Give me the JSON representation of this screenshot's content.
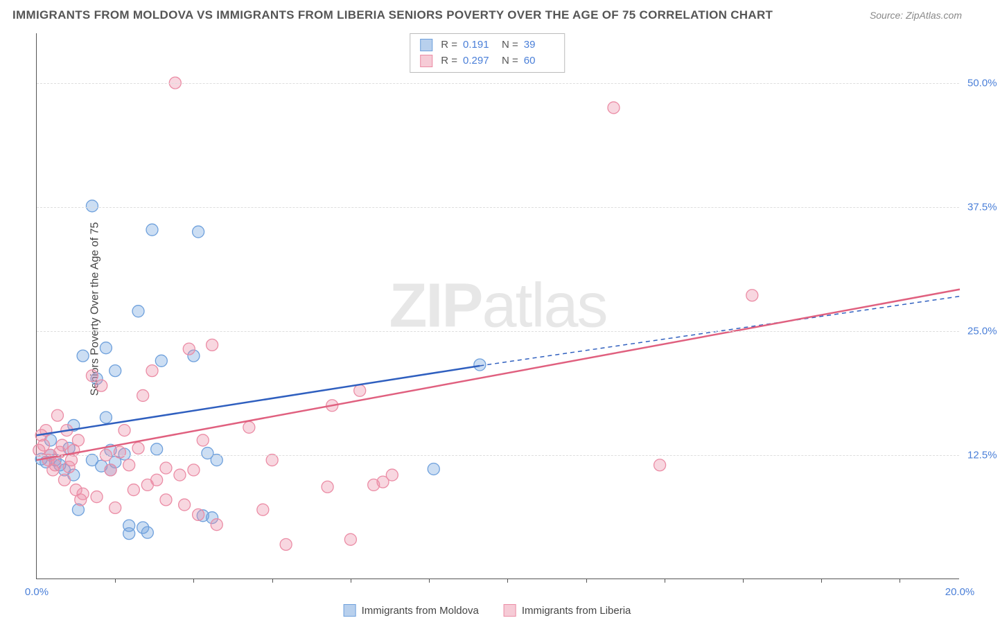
{
  "title": "IMMIGRANTS FROM MOLDOVA VS IMMIGRANTS FROM LIBERIA SENIORS POVERTY OVER THE AGE OF 75 CORRELATION CHART",
  "source_label": "Source: ZipAtlas.com",
  "y_axis_title": "Seniors Poverty Over the Age of 75",
  "watermark_bold": "ZIP",
  "watermark_light": "atlas",
  "chart": {
    "type": "scatter",
    "xlim": [
      0,
      20
    ],
    "ylim": [
      0,
      55
    ],
    "x_ticks_label": [
      {
        "val": 0,
        "label": "0.0%"
      },
      {
        "val": 20,
        "label": "20.0%"
      }
    ],
    "x_tick_marks": [
      1.7,
      3.4,
      5.1,
      6.8,
      8.5,
      10.2,
      11.9,
      13.6,
      15.3,
      17.0,
      18.7
    ],
    "y_ticks": [
      {
        "val": 12.5,
        "label": "12.5%"
      },
      {
        "val": 25.0,
        "label": "25.0%"
      },
      {
        "val": 37.5,
        "label": "37.5%"
      },
      {
        "val": 50.0,
        "label": "50.0%"
      }
    ],
    "grid_color": "#dddddd",
    "background_color": "#ffffff",
    "series": [
      {
        "name": "Immigrants from Moldova",
        "color_fill": "rgba(110,160,220,0.35)",
        "color_stroke": "#6ea0dc",
        "swatch_fill": "#b8d0ed",
        "swatch_border": "#6ea0dc",
        "marker_radius": 8.5,
        "R": "0.191",
        "N": "39",
        "trend": {
          "x1": 0,
          "y1": 14.5,
          "x2": 9.6,
          "y2": 21.5,
          "x2_dash": 20,
          "y2_dash": 28.5,
          "color": "#2f5fbf",
          "width": 2.5
        },
        "points": [
          [
            0.1,
            12.1
          ],
          [
            0.2,
            11.8
          ],
          [
            0.3,
            12.5
          ],
          [
            0.4,
            12.0
          ],
          [
            0.5,
            11.5
          ],
          [
            0.6,
            11.0
          ],
          [
            0.7,
            13.2
          ],
          [
            0.8,
            10.5
          ],
          [
            1.2,
            37.6
          ],
          [
            1.2,
            12.0
          ],
          [
            1.3,
            20.2
          ],
          [
            1.5,
            23.3
          ],
          [
            1.5,
            16.3
          ],
          [
            1.6,
            13.0
          ],
          [
            1.6,
            11.0
          ],
          [
            1.7,
            21.0
          ],
          [
            1.7,
            11.8
          ],
          [
            1.9,
            12.6
          ],
          [
            2.0,
            5.4
          ],
          [
            2.0,
            4.6
          ],
          [
            2.2,
            27.0
          ],
          [
            2.3,
            5.2
          ],
          [
            2.4,
            4.7
          ],
          [
            2.5,
            35.2
          ],
          [
            2.6,
            13.1
          ],
          [
            2.7,
            22.0
          ],
          [
            3.4,
            22.5
          ],
          [
            3.5,
            35.0
          ],
          [
            3.6,
            6.4
          ],
          [
            3.7,
            12.7
          ],
          [
            3.8,
            6.2
          ],
          [
            3.9,
            12.0
          ],
          [
            0.9,
            7.0
          ],
          [
            0.8,
            15.5
          ],
          [
            1.4,
            11.4
          ],
          [
            0.3,
            14.0
          ],
          [
            1.0,
            22.5
          ],
          [
            8.6,
            11.1
          ],
          [
            9.6,
            21.6
          ]
        ]
      },
      {
        "name": "Immigrants from Liberia",
        "color_fill": "rgba(235,140,165,0.35)",
        "color_stroke": "#eb8ca5",
        "swatch_fill": "#f6cbd6",
        "swatch_border": "#eb8ca5",
        "marker_radius": 8.5,
        "R": "0.297",
        "N": "60",
        "trend": {
          "x1": 0,
          "y1": 12.0,
          "x2": 20,
          "y2": 29.2,
          "color": "#e0607f",
          "width": 2.5
        },
        "points": [
          [
            0.05,
            13.0
          ],
          [
            0.1,
            14.5
          ],
          [
            0.15,
            13.5
          ],
          [
            0.2,
            15.0
          ],
          [
            0.25,
            12.0
          ],
          [
            0.3,
            12.5
          ],
          [
            0.35,
            11.0
          ],
          [
            0.4,
            11.5
          ],
          [
            0.45,
            16.5
          ],
          [
            0.5,
            12.8
          ],
          [
            0.55,
            13.5
          ],
          [
            0.6,
            10.0
          ],
          [
            0.65,
            15.0
          ],
          [
            0.7,
            11.3
          ],
          [
            0.75,
            12.0
          ],
          [
            0.8,
            13.0
          ],
          [
            0.85,
            9.0
          ],
          [
            0.9,
            14.0
          ],
          [
            0.95,
            8.0
          ],
          [
            1.0,
            8.6
          ],
          [
            1.2,
            20.5
          ],
          [
            1.3,
            8.3
          ],
          [
            1.4,
            19.5
          ],
          [
            1.5,
            12.5
          ],
          [
            1.6,
            11.0
          ],
          [
            1.7,
            7.2
          ],
          [
            1.8,
            12.8
          ],
          [
            1.9,
            15.0
          ],
          [
            2.0,
            11.5
          ],
          [
            2.1,
            9.0
          ],
          [
            2.2,
            13.2
          ],
          [
            2.3,
            18.5
          ],
          [
            2.4,
            9.5
          ],
          [
            2.5,
            21.0
          ],
          [
            2.6,
            10.0
          ],
          [
            2.8,
            8.0
          ],
          [
            2.8,
            11.2
          ],
          [
            3.0,
            50.0
          ],
          [
            3.1,
            10.5
          ],
          [
            3.2,
            7.5
          ],
          [
            3.3,
            23.2
          ],
          [
            3.4,
            11.0
          ],
          [
            3.5,
            6.5
          ],
          [
            3.8,
            23.6
          ],
          [
            3.9,
            5.5
          ],
          [
            4.6,
            15.3
          ],
          [
            4.9,
            7.0
          ],
          [
            5.1,
            12.0
          ],
          [
            5.4,
            3.5
          ],
          [
            6.3,
            9.3
          ],
          [
            6.4,
            17.5
          ],
          [
            6.8,
            4.0
          ],
          [
            7.0,
            19.0
          ],
          [
            7.3,
            9.5
          ],
          [
            7.5,
            9.8
          ],
          [
            7.7,
            10.5
          ],
          [
            12.5,
            47.5
          ],
          [
            13.5,
            11.5
          ],
          [
            15.5,
            28.6
          ],
          [
            3.6,
            14.0
          ]
        ]
      }
    ]
  },
  "legend_labels": {
    "R_prefix": "R  =",
    "N_prefix": "N  ="
  }
}
